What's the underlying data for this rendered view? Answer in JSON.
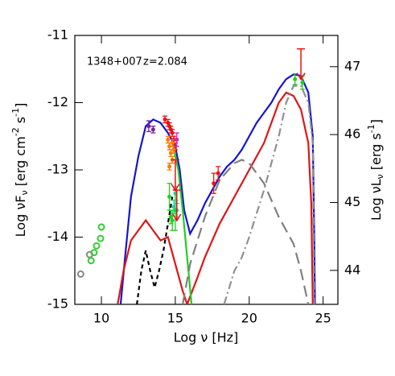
{
  "chart_data": {
    "type": "line",
    "annotations": [
      "1348+007",
      "z=2.084"
    ],
    "xlabel": "Log ν  [Hz]",
    "ylabel": [
      "Log νF",
      "ν",
      " [erg cm",
      "-2",
      " s",
      "-1",
      "]"
    ],
    "y2label": [
      "Log νL",
      "ν",
      " [erg s",
      "-1",
      "]"
    ],
    "xlim": [
      8.2,
      26
    ],
    "ylim": [
      -15,
      -11
    ],
    "y2lim": [
      43.5,
      47.46
    ],
    "xticks": [
      10,
      15,
      20,
      25
    ],
    "yticks": [
      -15,
      -14,
      -13,
      -12,
      -11
    ],
    "y2ticks": [
      44,
      45,
      46,
      47
    ],
    "series": [
      {
        "color": "#1414d2",
        "style": "solid",
        "x": [
          11.3,
          11.6,
          12,
          12.5,
          13,
          13.5,
          14,
          14.5,
          15,
          15.3,
          15.6,
          16,
          16.5,
          17,
          17.5,
          18,
          18.5,
          19,
          19.5,
          20,
          20.5,
          21,
          21.5,
          22,
          22.5,
          23,
          23.5,
          24,
          24.3,
          24.4,
          24.45
        ],
        "values": [
          -15,
          -14.3,
          -13.4,
          -12.8,
          -12.35,
          -12.25,
          -12.3,
          -12.45,
          -12.65,
          -13.0,
          -13.6,
          -13.95,
          -13.75,
          -13.5,
          -13.3,
          -13.1,
          -12.95,
          -12.85,
          -12.7,
          -12.5,
          -12.3,
          -12.15,
          -12.0,
          -11.8,
          -11.65,
          -11.58,
          -11.6,
          -11.85,
          -12.5,
          -14,
          -15
        ]
      },
      {
        "color": "#e01414",
        "style": "solid",
        "x": [
          11.1,
          11.5,
          12,
          12.5,
          13,
          13.5,
          14,
          14.5,
          15,
          15.5,
          15.8,
          16.5,
          17,
          18,
          19,
          20,
          21,
          22,
          22.5,
          23,
          23.5,
          24,
          24.2,
          24.3
        ],
        "values": [
          -15,
          -14.5,
          -14.05,
          -13.9,
          -13.75,
          -13.9,
          -14.05,
          -14.0,
          -14.4,
          -14.8,
          -15,
          -14.6,
          -14.3,
          -13.8,
          -13.4,
          -13.0,
          -12.6,
          -12.0,
          -11.85,
          -11.9,
          -12.1,
          -12.6,
          -13.5,
          -15
        ]
      },
      {
        "color": "#22cc22",
        "style": "solid",
        "x": [
          14.8,
          15.2,
          15.5,
          15.8,
          16.1
        ],
        "values": [
          -12.6,
          -13.0,
          -13.6,
          -14.3,
          -15
        ]
      },
      {
        "color": "#000000",
        "style": "dashed",
        "x": [
          12.4,
          12.7,
          13,
          13.3,
          13.6,
          13.9,
          14.2,
          14.5,
          14.8
        ],
        "values": [
          -15,
          -14.5,
          -14.2,
          -14.5,
          -14.75,
          -14.5,
          -14.2,
          -13.8,
          -13.4
        ]
      },
      {
        "color": "#808080",
        "style": "longdash",
        "x": [
          15.5,
          16,
          17,
          18,
          19,
          19.5,
          20,
          21,
          22,
          22.5,
          23,
          23.5,
          24
        ],
        "values": [
          -15,
          -14.4,
          -13.7,
          -13.15,
          -12.9,
          -12.85,
          -12.9,
          -13.2,
          -13.7,
          -13.9,
          -14.1,
          -14.5,
          -15
        ]
      },
      {
        "color": "#909090",
        "style": "dashdot",
        "x": [
          18.3,
          19,
          19.5,
          20,
          21,
          22,
          22.5,
          23,
          23.5,
          24,
          24.3,
          24.4
        ],
        "values": [
          -15,
          -14.5,
          -14.3,
          -14.0,
          -13.3,
          -12.5,
          -12.0,
          -11.75,
          -11.75,
          -12,
          -12.6,
          -15
        ]
      }
    ],
    "points": [
      {
        "color": "#888888",
        "marker": "open-circle",
        "x": [
          8.6,
          9.2
        ],
        "values": [
          -14.55,
          -14.26
        ]
      },
      {
        "color": "#33cc33",
        "marker": "open-circle",
        "x": [
          9.3,
          9.5,
          9.67,
          9.94,
          10.0
        ],
        "values": [
          -14.35,
          -14.23,
          -14.13,
          -14.02,
          -13.85
        ]
      },
      {
        "color": "#7a1fa0",
        "marker": "dot",
        "x": [
          13.2,
          13.5
        ],
        "values": [
          -12.35,
          -12.4
        ],
        "errors": [
          0.08,
          0.05
        ]
      },
      {
        "color": "#ee1111",
        "marker": "dot",
        "x": [
          14.3,
          14.5,
          14.6,
          14.7,
          14.8,
          14.9,
          15.0
        ],
        "values": [
          -12.25,
          -12.3,
          -12.35,
          -12.4,
          -12.45,
          -12.55,
          -12.65
        ],
        "errors": [
          0.05,
          0.05,
          0.05,
          0.05,
          0.05,
          0.05,
          0.05
        ]
      },
      {
        "color": "#ff7a00",
        "marker": "dot",
        "x": [
          14.5,
          14.6,
          14.7,
          14.8,
          14.9,
          14.6,
          14.8
        ],
        "values": [
          -12.55,
          -12.65,
          -12.75,
          -12.85,
          -12.7,
          -12.95,
          -12.6
        ],
        "errors": [
          0.05,
          0.05,
          0.05,
          0.05,
          0.05,
          0.05,
          0.05
        ]
      },
      {
        "color": "#d020d0",
        "marker": "dot",
        "x": [
          15.1
        ],
        "values": [
          -12.55
        ],
        "errors": [
          0.1
        ]
      },
      {
        "color": "#22cccc",
        "marker": "dot",
        "x": [
          14.9,
          15.0,
          15.1
        ],
        "values": [
          -13.55,
          -13.35,
          -13.6
        ],
        "errors": [
          0.1,
          0.1,
          0.1
        ]
      },
      {
        "color": "#22cc22",
        "marker": "dot",
        "x": [
          14.6,
          14.7,
          14.8,
          15.0,
          23.1,
          23.6
        ],
        "values": [
          -13.4,
          -13.7,
          -13.75,
          -13.6,
          -11.65,
          -11.7
        ],
        "errors": [
          0.2,
          0.1,
          0.15,
          0.3,
          0.08,
          0.1
        ]
      },
      {
        "color": "#ee1111",
        "marker": "dot",
        "x": [
          17.6,
          17.9
        ],
        "values": [
          -13.2,
          -13.05
        ],
        "errors": [
          0.15,
          0.1
        ]
      },
      {
        "color": "#ee1111",
        "marker": "upper-limit",
        "x": [
          15.0,
          15.1,
          23.5
        ],
        "values": [
          -12.85,
          -13.3,
          -11.2
        ]
      }
    ]
  }
}
